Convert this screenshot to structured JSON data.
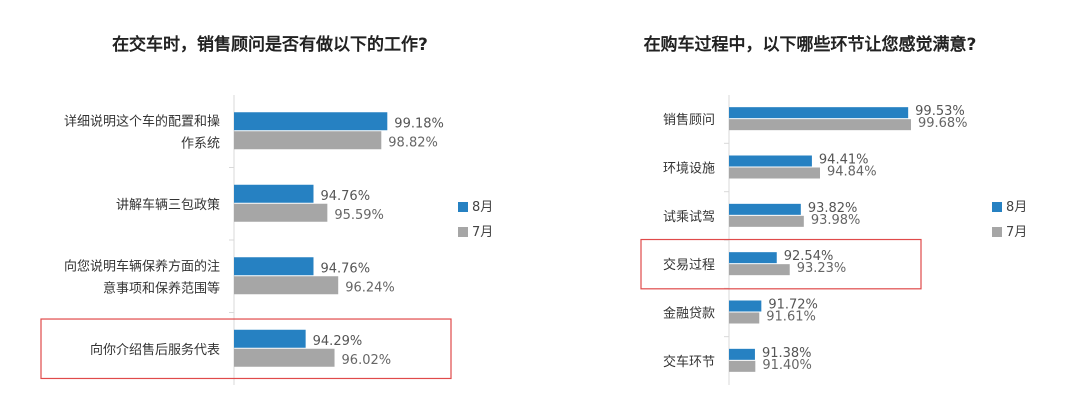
{
  "colors": {
    "aug": "#2681c2",
    "jul": "#a6a6a6",
    "highlight": "#e04a4a"
  },
  "chart_data": [
    {
      "type": "bar",
      "orientation": "horizontal",
      "title": "在交车时，销售顾问是否有做以下的工作?",
      "categories": [
        "详细说明这个车的配置和操作系统",
        "讲解车辆三包政策",
        "向您说明车辆保养方面的注意事项和保养范围等",
        "向你介绍售后服务代表"
      ],
      "category_lines": [
        [
          "详细说明这个车的配置和操",
          "作系统"
        ],
        [
          "讲解车辆三包政策"
        ],
        [
          "向您说明车辆保养方面的注",
          "意事项和保养范围等"
        ],
        [
          "向你介绍售后服务代表"
        ]
      ],
      "series": [
        {
          "name": "8月",
          "values": [
            99.18,
            94.76,
            94.76,
            94.29
          ],
          "labels": [
            "99.18%",
            "94.76%",
            "94.76%",
            "94.29%"
          ]
        },
        {
          "name": "7月",
          "values": [
            98.82,
            95.59,
            96.24,
            96.02
          ],
          "labels": [
            "98.82%",
            "95.59%",
            "96.24%",
            "96.02%"
          ]
        }
      ],
      "highlighted_category": "向你介绍售后服务代表",
      "legend": "right"
    },
    {
      "type": "bar",
      "orientation": "horizontal",
      "title": "在购车过程中，以下哪些环节让您感觉满意?",
      "categories": [
        "销售顾问",
        "环境设施",
        "试乘试驾",
        "交易过程",
        "金融贷款",
        "交车环节"
      ],
      "category_lines": [
        [
          "销售顾问"
        ],
        [
          "环境设施"
        ],
        [
          "试乘试驾"
        ],
        [
          "交易过程"
        ],
        [
          "金融贷款"
        ],
        [
          "交车环节"
        ]
      ],
      "series": [
        {
          "name": "8月",
          "values": [
            99.53,
            94.41,
            93.82,
            92.54,
            91.72,
            91.38
          ],
          "labels": [
            "99.53%",
            "94.41%",
            "93.82%",
            "92.54%",
            "91.72%",
            "91.38%"
          ]
        },
        {
          "name": "7月",
          "values": [
            99.68,
            94.84,
            93.98,
            93.23,
            91.61,
            91.4
          ],
          "labels": [
            "99.68%",
            "94.84%",
            "93.98%",
            "93.23%",
            "91.61%",
            "91.40%"
          ]
        }
      ],
      "highlighted_category": "交易过程",
      "legend": "right"
    }
  ]
}
